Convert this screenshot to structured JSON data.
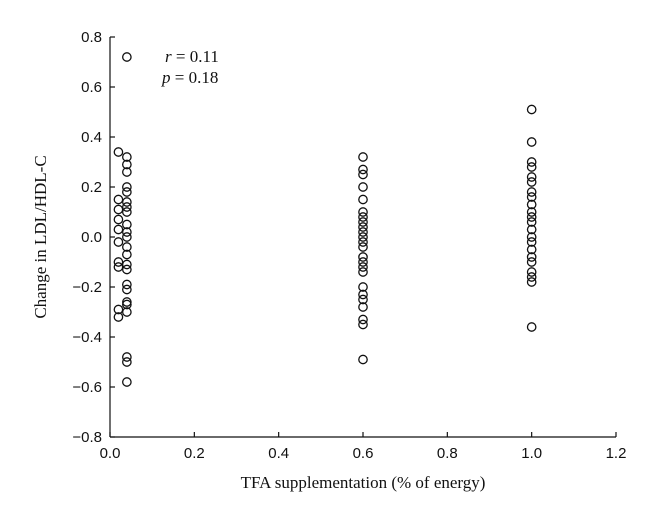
{
  "chart_data": {
    "type": "scatter",
    "xlabel": "TFA supplementation (% of energy)",
    "ylabel": "Change in LDL/HDL-C",
    "xlim": [
      0.0,
      1.2
    ],
    "ylim": [
      -0.8,
      0.8
    ],
    "x_ticks": [
      0.0,
      0.2,
      0.4,
      0.6,
      0.8,
      1.0,
      1.2
    ],
    "y_ticks": [
      -0.8,
      -0.6,
      -0.4,
      -0.2,
      0.0,
      0.2,
      0.4,
      0.6,
      0.8
    ],
    "x_tick_labels": [
      "0.0",
      "0.2",
      "0.4",
      "0.6",
      "0.8",
      "1.0",
      "1.2"
    ],
    "y_tick_labels": [
      "−0.8",
      "−0.6",
      "−0.4",
      "−0.2",
      "0.0",
      "0.2",
      "0.4",
      "0.6",
      "0.8"
    ],
    "grid": false,
    "annotations": {
      "r_symbol": "r",
      "r_value": " = 0.11",
      "p_symbol": "p",
      "p_value": " = 0.18"
    },
    "points": [
      {
        "x": 0.04,
        "y": 0.72
      },
      {
        "x": 0.02,
        "y": 0.34
      },
      {
        "x": 0.04,
        "y": 0.32
      },
      {
        "x": 0.04,
        "y": 0.29
      },
      {
        "x": 0.04,
        "y": 0.26
      },
      {
        "x": 0.04,
        "y": 0.2
      },
      {
        "x": 0.04,
        "y": 0.18
      },
      {
        "x": 0.02,
        "y": 0.15
      },
      {
        "x": 0.04,
        "y": 0.14
      },
      {
        "x": 0.04,
        "y": 0.12
      },
      {
        "x": 0.02,
        "y": 0.11
      },
      {
        "x": 0.04,
        "y": 0.1
      },
      {
        "x": 0.02,
        "y": 0.07
      },
      {
        "x": 0.04,
        "y": 0.05
      },
      {
        "x": 0.02,
        "y": 0.03
      },
      {
        "x": 0.04,
        "y": 0.02
      },
      {
        "x": 0.04,
        "y": 0.0
      },
      {
        "x": 0.02,
        "y": -0.02
      },
      {
        "x": 0.04,
        "y": -0.04
      },
      {
        "x": 0.04,
        "y": -0.07
      },
      {
        "x": 0.02,
        "y": -0.1
      },
      {
        "x": 0.04,
        "y": -0.11
      },
      {
        "x": 0.02,
        "y": -0.12
      },
      {
        "x": 0.04,
        "y": -0.13
      },
      {
        "x": 0.04,
        "y": -0.19
      },
      {
        "x": 0.04,
        "y": -0.21
      },
      {
        "x": 0.04,
        "y": -0.26
      },
      {
        "x": 0.04,
        "y": -0.27
      },
      {
        "x": 0.02,
        "y": -0.29
      },
      {
        "x": 0.04,
        "y": -0.3
      },
      {
        "x": 0.02,
        "y": -0.32
      },
      {
        "x": 0.04,
        "y": -0.48
      },
      {
        "x": 0.04,
        "y": -0.5
      },
      {
        "x": 0.04,
        "y": -0.58
      },
      {
        "x": 0.6,
        "y": 0.32
      },
      {
        "x": 0.6,
        "y": 0.27
      },
      {
        "x": 0.6,
        "y": 0.25
      },
      {
        "x": 0.6,
        "y": 0.2
      },
      {
        "x": 0.6,
        "y": 0.15
      },
      {
        "x": 0.6,
        "y": 0.1
      },
      {
        "x": 0.6,
        "y": 0.08
      },
      {
        "x": 0.6,
        "y": 0.06
      },
      {
        "x": 0.6,
        "y": 0.04
      },
      {
        "x": 0.6,
        "y": 0.02
      },
      {
        "x": 0.6,
        "y": 0.0
      },
      {
        "x": 0.6,
        "y": -0.02
      },
      {
        "x": 0.6,
        "y": -0.04
      },
      {
        "x": 0.6,
        "y": -0.08
      },
      {
        "x": 0.6,
        "y": -0.1
      },
      {
        "x": 0.6,
        "y": -0.12
      },
      {
        "x": 0.6,
        "y": -0.14
      },
      {
        "x": 0.6,
        "y": -0.2
      },
      {
        "x": 0.6,
        "y": -0.23
      },
      {
        "x": 0.6,
        "y": -0.25
      },
      {
        "x": 0.6,
        "y": -0.28
      },
      {
        "x": 0.6,
        "y": -0.33
      },
      {
        "x": 0.6,
        "y": -0.35
      },
      {
        "x": 0.6,
        "y": -0.49
      },
      {
        "x": 1.0,
        "y": 0.51
      },
      {
        "x": 1.0,
        "y": 0.38
      },
      {
        "x": 1.0,
        "y": 0.3
      },
      {
        "x": 1.0,
        "y": 0.28
      },
      {
        "x": 1.0,
        "y": 0.24
      },
      {
        "x": 1.0,
        "y": 0.22
      },
      {
        "x": 1.0,
        "y": 0.18
      },
      {
        "x": 1.0,
        "y": 0.16
      },
      {
        "x": 1.0,
        "y": 0.13
      },
      {
        "x": 1.0,
        "y": 0.1
      },
      {
        "x": 1.0,
        "y": 0.08
      },
      {
        "x": 1.0,
        "y": 0.06
      },
      {
        "x": 1.0,
        "y": 0.03
      },
      {
        "x": 1.0,
        "y": 0.0
      },
      {
        "x": 1.0,
        "y": -0.02
      },
      {
        "x": 1.0,
        "y": -0.05
      },
      {
        "x": 1.0,
        "y": -0.08
      },
      {
        "x": 1.0,
        "y": -0.1
      },
      {
        "x": 1.0,
        "y": -0.14
      },
      {
        "x": 1.0,
        "y": -0.16
      },
      {
        "x": 1.0,
        "y": -0.18
      },
      {
        "x": 1.0,
        "y": -0.36
      }
    ]
  }
}
